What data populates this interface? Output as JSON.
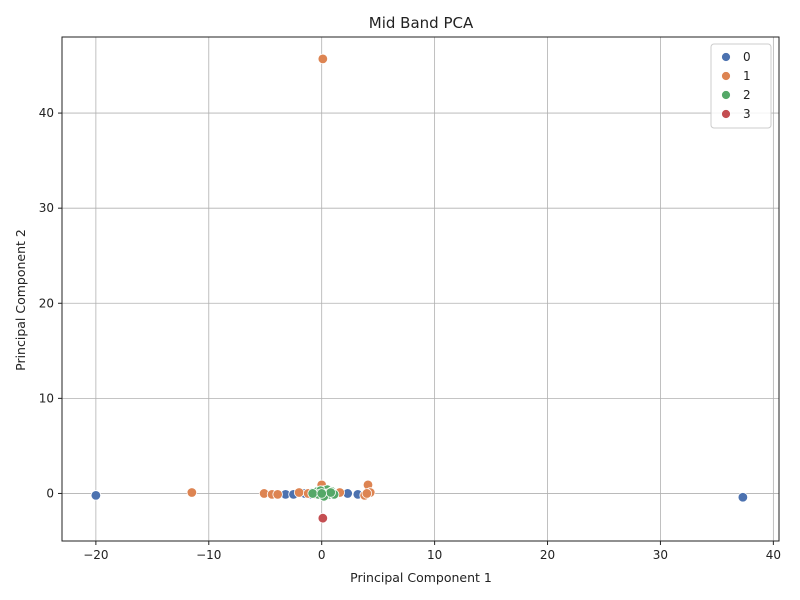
{
  "chart_data": {
    "type": "scatter",
    "title": "Mid Band PCA",
    "xlabel": "Principal Component 1",
    "ylabel": "Principal Component 2",
    "xlim": [
      -23,
      40.5
    ],
    "ylim": [
      -5,
      48
    ],
    "xticks": [
      -20,
      -10,
      0,
      10,
      20,
      30,
      40
    ],
    "yticks": [
      0,
      10,
      20,
      30,
      40
    ],
    "grid": true,
    "legend_position": "top-right",
    "series": [
      {
        "name": "0",
        "color": "#4c72b0",
        "points": [
          [
            -20.0,
            -0.2
          ],
          [
            37.3,
            -0.4
          ],
          [
            -3.2,
            -0.1
          ],
          [
            -2.5,
            -0.1
          ],
          [
            -1.5,
            0.0
          ],
          [
            2.3,
            0.0
          ],
          [
            3.2,
            -0.1
          ],
          [
            -0.8,
            0.1
          ],
          [
            0.5,
            -0.1
          ],
          [
            1.2,
            0.0
          ],
          [
            -0.3,
            0.2
          ],
          [
            0.2,
            -0.2
          ],
          [
            -1.0,
            -0.1
          ],
          [
            0.8,
            0.1
          ]
        ]
      },
      {
        "name": "1",
        "color": "#dd8452",
        "points": [
          [
            0.1,
            45.7
          ],
          [
            -11.5,
            0.1
          ],
          [
            -5.1,
            0.0
          ],
          [
            -4.4,
            -0.1
          ],
          [
            -3.9,
            -0.1
          ],
          [
            -2.0,
            0.1
          ],
          [
            -1.2,
            0.0
          ],
          [
            0.0,
            0.9
          ],
          [
            4.1,
            0.9
          ],
          [
            4.3,
            0.1
          ],
          [
            3.8,
            -0.2
          ],
          [
            1.6,
            0.1
          ],
          [
            0.6,
            0.2
          ],
          [
            -0.5,
            -0.1
          ],
          [
            4.0,
            0.0
          ]
        ]
      },
      {
        "name": "2",
        "color": "#55a868",
        "points": [
          [
            -0.6,
            0.1
          ],
          [
            -0.4,
            0.2
          ],
          [
            -0.2,
            0.0
          ],
          [
            0.0,
            -0.1
          ],
          [
            0.1,
            0.1
          ],
          [
            0.2,
            0.3
          ],
          [
            0.3,
            -0.2
          ],
          [
            0.4,
            0.1
          ],
          [
            0.5,
            0.4
          ],
          [
            0.6,
            0.0
          ],
          [
            0.7,
            -0.1
          ],
          [
            0.9,
            0.2
          ],
          [
            1.0,
            0.0
          ],
          [
            1.1,
            -0.1
          ],
          [
            -0.1,
            0.3
          ],
          [
            -0.3,
            -0.1
          ],
          [
            0.2,
            -0.3
          ],
          [
            0.8,
            0.1
          ],
          [
            -0.8,
            0.0
          ],
          [
            0.0,
            0.0
          ]
        ]
      },
      {
        "name": "3",
        "color": "#c44e52",
        "points": [
          [
            0.1,
            -2.6
          ]
        ]
      }
    ]
  }
}
